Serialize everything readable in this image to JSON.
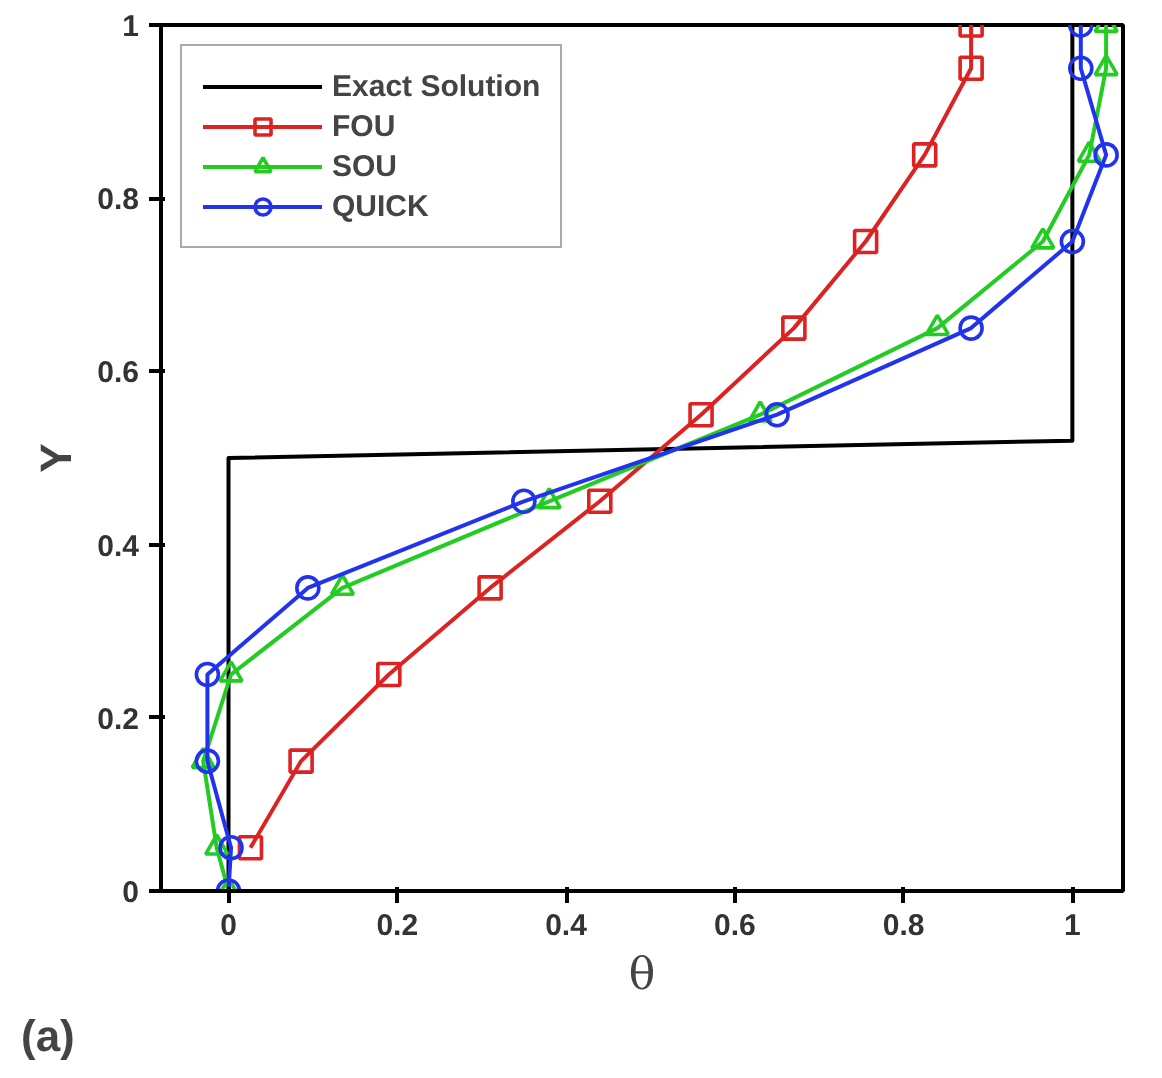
{
  "chart_data": {
    "type": "line",
    "xlabel": "θ",
    "ylabel": "Y",
    "annotations": [
      "(a)"
    ],
    "xlim": [
      -0.08,
      1.06
    ],
    "ylim": [
      0,
      1
    ],
    "xticks": [
      0,
      0.2,
      0.4,
      0.6,
      0.8,
      1
    ],
    "yticks": [
      0,
      0.2,
      0.4,
      0.6,
      0.8,
      1
    ],
    "grid": false,
    "legend": "top left",
    "series": [
      {
        "name": "Exact Solution",
        "color": "#000000",
        "marker": "none",
        "x": [
          0,
          0,
          1,
          1
        ],
        "values": [
          0,
          0.5,
          0.52,
          1
        ]
      },
      {
        "name": "FOU",
        "color": "#dd2222",
        "marker": "square",
        "x": [
          0.026,
          0.086,
          0.19,
          0.31,
          0.44,
          0.56,
          0.67,
          0.755,
          0.825,
          0.88,
          0.88
        ],
        "values": [
          0.05,
          0.15,
          0.25,
          0.35,
          0.45,
          0.55,
          0.65,
          0.75,
          0.85,
          0.95,
          1
        ]
      },
      {
        "name": "SOU",
        "color": "#22cc22",
        "marker": "triangle",
        "x": [
          0,
          -0.014,
          -0.03,
          0.003,
          0.135,
          0.38,
          0.63,
          0.84,
          0.965,
          1.02,
          1.04,
          1.04
        ],
        "values": [
          0,
          0.05,
          0.15,
          0.25,
          0.35,
          0.45,
          0.55,
          0.65,
          0.75,
          0.85,
          0.95,
          1
        ]
      },
      {
        "name": "QUICK",
        "color": "#2233ee",
        "marker": "circle",
        "x": [
          0,
          0.003,
          -0.025,
          -0.025,
          0.094,
          0.35,
          0.65,
          0.88,
          1.0,
          1.04,
          1.01,
          1.01
        ],
        "values": [
          0,
          0.05,
          0.15,
          0.25,
          0.35,
          0.45,
          0.55,
          0.65,
          0.75,
          0.85,
          0.95,
          1
        ]
      }
    ]
  }
}
